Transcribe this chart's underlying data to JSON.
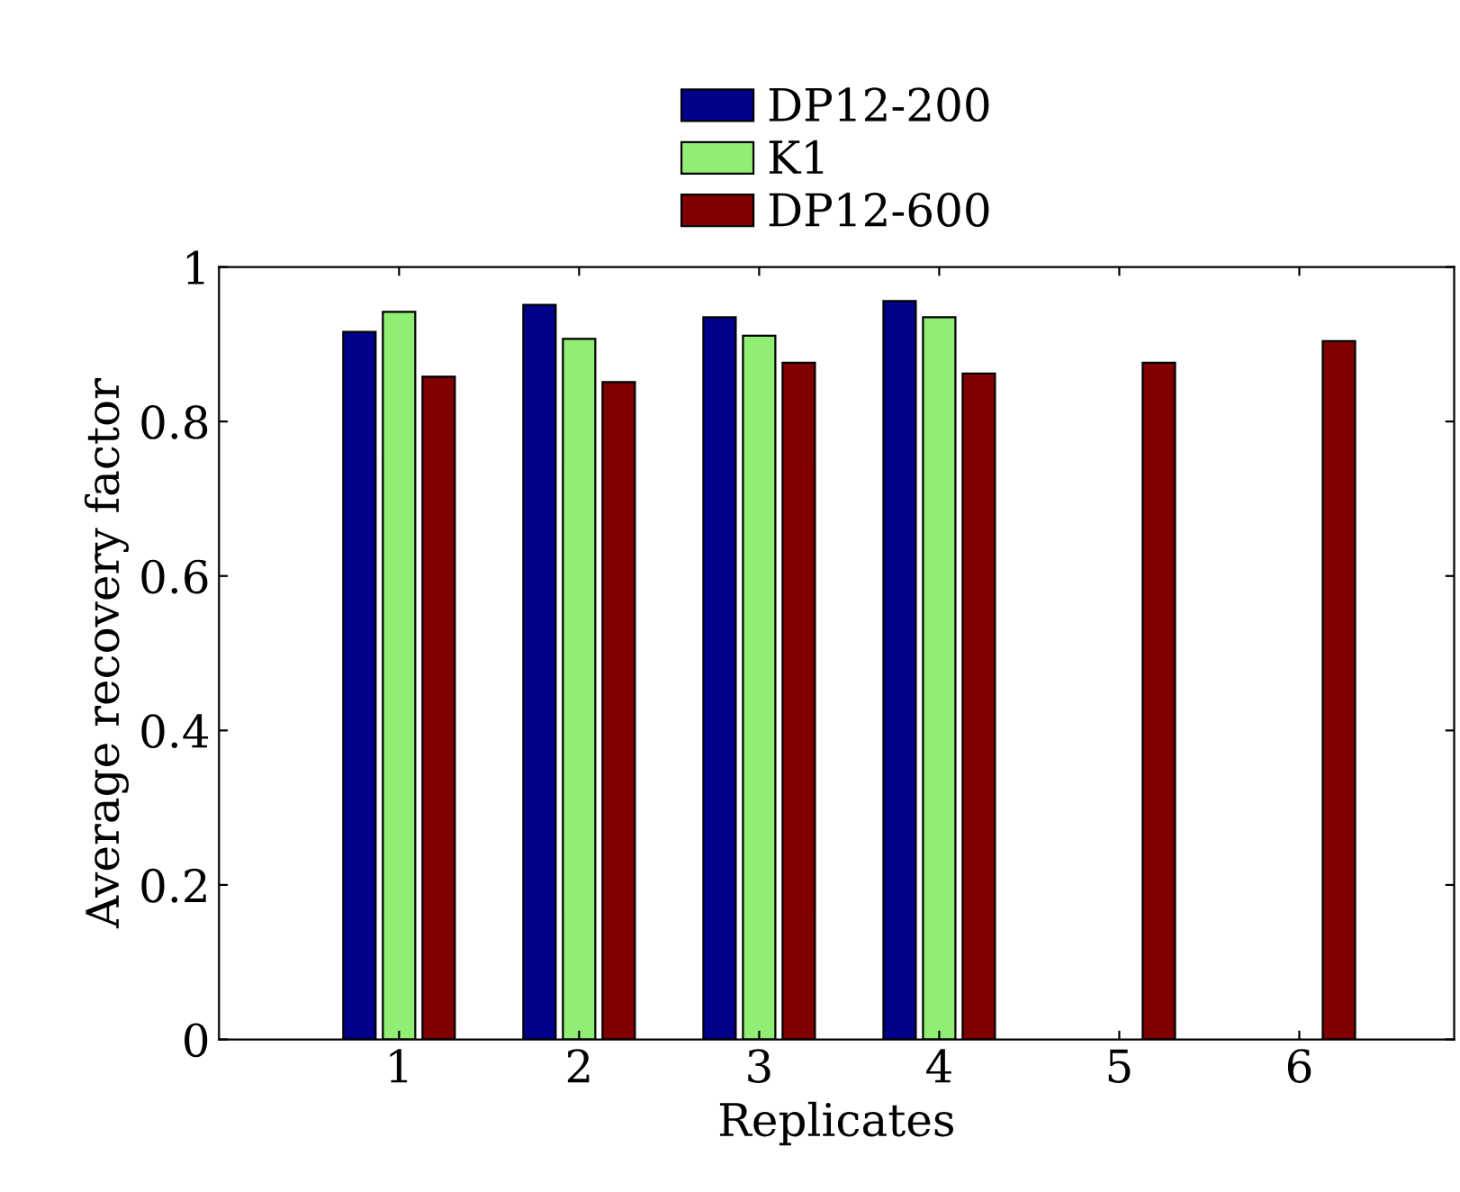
{
  "chart_data": {
    "type": "bar",
    "xlabel": "Replicates",
    "ylabel": "Average recovery factor",
    "x": [
      1,
      2,
      3,
      4,
      5,
      6
    ],
    "xlim": [
      0,
      6.86
    ],
    "xticks": [
      1,
      2,
      3,
      4,
      5,
      6
    ],
    "ylim": [
      0,
      1
    ],
    "yticks": [
      0,
      0.2,
      0.4,
      0.6,
      0.8,
      1
    ],
    "series": [
      {
        "name": "DP12-200",
        "color": "#00008b",
        "values": [
          0.916,
          0.951,
          0.935,
          0.956,
          null,
          null
        ]
      },
      {
        "name": "K1",
        "color": "#90ee75",
        "values": [
          0.942,
          0.907,
          0.911,
          0.935,
          null,
          null
        ]
      },
      {
        "name": "DP12-600",
        "color": "#800000",
        "values": [
          0.858,
          0.851,
          0.876,
          0.862,
          0.876,
          0.904
        ]
      }
    ],
    "legend": "top",
    "grid": false
  }
}
